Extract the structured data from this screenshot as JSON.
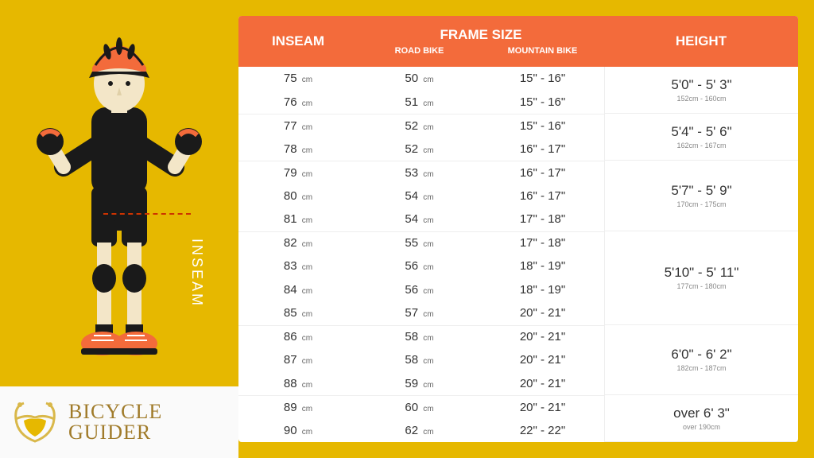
{
  "colors": {
    "background": "#e6b800",
    "header_bg": "#f36b3b",
    "header_text": "#ffffff",
    "table_bg": "#ffffff",
    "row_text": "#333333",
    "unit_text": "#666666",
    "logo_text": "#a07b2a",
    "inseam_line": "#cc3300",
    "divider": "#eeeeee"
  },
  "inseam_label": "INSEAM",
  "logo": {
    "line1": "BICYCLE",
    "line2": "GUIDER"
  },
  "table": {
    "headers": {
      "inseam": "INSEAM",
      "frame": "FRAME SIZE",
      "road": "ROAD BIKE",
      "mountain": "MOUNTAIN BIKE",
      "height": "HEIGHT"
    },
    "unit_cm": "cm",
    "rows": [
      {
        "inseam": 75,
        "road": 50,
        "mountain": "15\" - 16\"",
        "sep": false
      },
      {
        "inseam": 76,
        "road": 51,
        "mountain": "15\" - 16\"",
        "sep": false
      },
      {
        "inseam": 77,
        "road": 52,
        "mountain": "15\" - 16\"",
        "sep": true
      },
      {
        "inseam": 78,
        "road": 52,
        "mountain": "16\" - 17\"",
        "sep": false
      },
      {
        "inseam": 79,
        "road": 53,
        "mountain": "16\" - 17\"",
        "sep": true
      },
      {
        "inseam": 80,
        "road": 54,
        "mountain": "16\" - 17\"",
        "sep": false
      },
      {
        "inseam": 81,
        "road": 54,
        "mountain": "17\" - 18\"",
        "sep": false
      },
      {
        "inseam": 82,
        "road": 55,
        "mountain": "17\" - 18\"",
        "sep": true
      },
      {
        "inseam": 83,
        "road": 56,
        "mountain": "18\" - 19\"",
        "sep": false
      },
      {
        "inseam": 84,
        "road": 56,
        "mountain": "18\" - 19\"",
        "sep": false
      },
      {
        "inseam": 85,
        "road": 57,
        "mountain": "20\" - 21\"",
        "sep": false
      },
      {
        "inseam": 86,
        "road": 58,
        "mountain": "20\" - 21\"",
        "sep": true
      },
      {
        "inseam": 87,
        "road": 58,
        "mountain": "20\" - 21\"",
        "sep": false
      },
      {
        "inseam": 88,
        "road": 59,
        "mountain": "20\" - 21\"",
        "sep": false
      },
      {
        "inseam": 89,
        "road": 60,
        "mountain": "20\" - 21\"",
        "sep": true
      },
      {
        "inseam": 90,
        "road": 62,
        "mountain": "22\" - 22\"",
        "sep": false
      }
    ],
    "height_groups": [
      {
        "main": "5'0\" - 5' 3\"",
        "sub": "152cm - 160cm",
        "span": 2
      },
      {
        "main": "5'4\" - 5' 6\"",
        "sub": "162cm - 167cm",
        "span": 2
      },
      {
        "main": "5'7\" - 5' 9\"",
        "sub": "170cm - 175cm",
        "span": 3
      },
      {
        "main": "5'10\" - 5' 11\"",
        "sub": "177cm - 180cm",
        "span": 4
      },
      {
        "main": "6'0\" - 6' 2\"",
        "sub": "182cm - 187cm",
        "span": 3
      },
      {
        "main": "over 6' 3\"",
        "sub": "over 190cm",
        "span": 2
      }
    ]
  },
  "character": {
    "skin": "#f3e6c8",
    "helmet": "#f36b3b",
    "helmet_dark": "#1a1a1a",
    "shirt": "#1a1a1a",
    "shorts": "#1a1a1a",
    "gloves": "#1a1a1a",
    "glove_accent": "#f36b3b",
    "kneepads": "#1a1a1a",
    "shoes": "#f36b3b",
    "shoe_sole": "#1a1a1a"
  }
}
